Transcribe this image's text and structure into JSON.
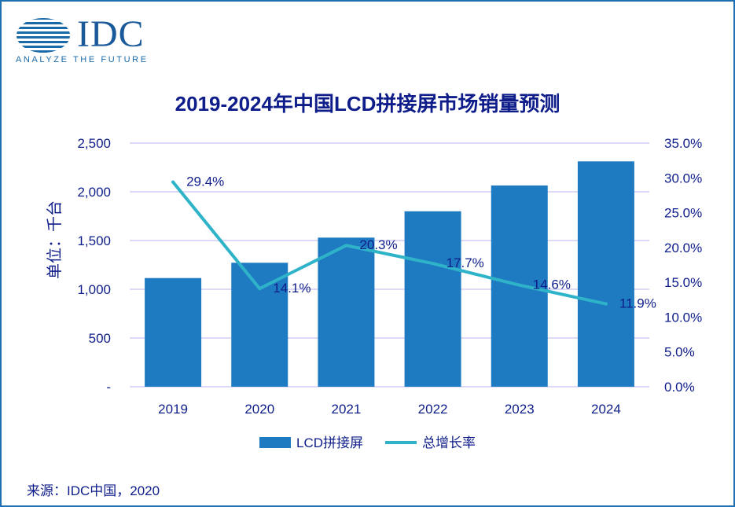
{
  "logo": {
    "brand": "IDC",
    "tagline": "ANALYZE THE FUTURE"
  },
  "colors": {
    "bar": "#1f7bc1",
    "line": "#2fb3c9",
    "text": "#0e1d8a",
    "grid": "#b9b6ec",
    "frame": "#1f6fb2"
  },
  "source": "来源：IDC中国，2020",
  "chart_data": {
    "type": "bar",
    "title": "2019-2024年中国LCD拼接屏市场销量预测",
    "ylabel": "单位：千台",
    "categories": [
      "2019",
      "2020",
      "2021",
      "2022",
      "2023",
      "2024"
    ],
    "series": [
      {
        "name": "LCD拼接屏",
        "type": "bar",
        "axis": "left",
        "values": [
          1115,
          1272,
          1530,
          1800,
          2065,
          2312
        ]
      },
      {
        "name": "总增长率",
        "type": "line",
        "axis": "right",
        "values": [
          29.4,
          14.1,
          20.3,
          17.7,
          14.6,
          11.9
        ],
        "labels": [
          "29.4%",
          "14.1%",
          "20.3%",
          "17.7%",
          "14.6%",
          "11.9%"
        ]
      }
    ],
    "y_left": {
      "range": [
        0,
        2500
      ],
      "ticks": [
        0,
        500,
        1000,
        1500,
        2000,
        2500
      ],
      "tick_labels": [
        "-",
        "500",
        "1,000",
        "1,500",
        "2,000",
        "2,500"
      ]
    },
    "y_right": {
      "range": [
        0,
        35
      ],
      "ticks": [
        0,
        5,
        10,
        15,
        20,
        25,
        30,
        35
      ],
      "tick_labels": [
        "0.0%",
        "5.0%",
        "10.0%",
        "15.0%",
        "20.0%",
        "25.0%",
        "30.0%",
        "35.0%"
      ]
    },
    "grid": true,
    "legend": "bottom-center"
  }
}
